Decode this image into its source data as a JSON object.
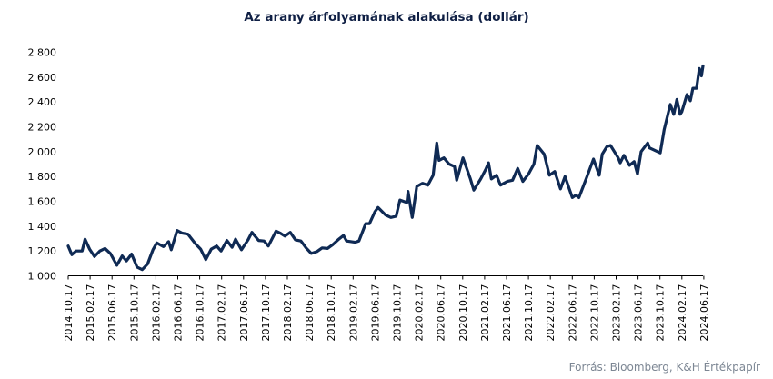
{
  "chart_data": {
    "type": "line",
    "title": "Az arany árfolyamának alakulása (dollár)",
    "xlabel": "",
    "ylabel": "",
    "ylim": [
      1000,
      2800
    ],
    "yticks": [
      1000,
      1200,
      1400,
      1600,
      1800,
      2000,
      2200,
      2400,
      2600,
      2800
    ],
    "ytick_labels": [
      "1 000",
      "1 200",
      "1 400",
      "1 600",
      "1 800",
      "2 000",
      "2 200",
      "2 400",
      "2 600",
      "2 800"
    ],
    "xlim": [
      "2014-10-17",
      "2024-10-17"
    ],
    "xtick_labels": [
      "2014.10.17",
      "2015.02.17",
      "2015.06.17",
      "2015.10.17",
      "2016.02.17",
      "2016.06.17",
      "2016.10.17",
      "2017.02.17",
      "2017.06.17",
      "2017.10.17",
      "2018.02.17",
      "2018.06.17",
      "2018.10.17",
      "2019.02.17",
      "2019.06.17",
      "2019.10.17",
      "2020.02.17",
      "2020.06.17",
      "2020.10.17",
      "2021.02.17",
      "2021.06.17",
      "2021.10.17",
      "2022.02.17",
      "2022.06.17",
      "2022.10.17",
      "2023.02.17",
      "2023.06.17",
      "2023.10.17",
      "2024.02.17",
      "2024.06.17"
    ],
    "grid": false,
    "legend": "none",
    "series": [
      {
        "color": "#0f2a54",
        "points": [
          [
            "2014-10-17",
            1240
          ],
          [
            "2014-11-07",
            1170
          ],
          [
            "2014-12-01",
            1200
          ],
          [
            "2015-01-05",
            1200
          ],
          [
            "2015-01-22",
            1295
          ],
          [
            "2015-02-17",
            1215
          ],
          [
            "2015-03-17",
            1155
          ],
          [
            "2015-04-17",
            1200
          ],
          [
            "2015-05-17",
            1220
          ],
          [
            "2015-06-17",
            1180
          ],
          [
            "2015-07-24",
            1085
          ],
          [
            "2015-08-24",
            1160
          ],
          [
            "2015-09-17",
            1120
          ],
          [
            "2015-10-17",
            1175
          ],
          [
            "2015-11-17",
            1070
          ],
          [
            "2015-12-17",
            1050
          ],
          [
            "2016-01-17",
            1095
          ],
          [
            "2016-02-17",
            1210
          ],
          [
            "2016-03-10",
            1265
          ],
          [
            "2016-04-17",
            1235
          ],
          [
            "2016-05-17",
            1275
          ],
          [
            "2016-06-01",
            1210
          ],
          [
            "2016-07-05",
            1365
          ],
          [
            "2016-08-01",
            1345
          ],
          [
            "2016-09-05",
            1335
          ],
          [
            "2016-10-17",
            1260
          ],
          [
            "2016-11-17",
            1215
          ],
          [
            "2016-12-17",
            1130
          ],
          [
            "2017-01-17",
            1215
          ],
          [
            "2017-02-17",
            1240
          ],
          [
            "2017-03-15",
            1200
          ],
          [
            "2017-04-17",
            1285
          ],
          [
            "2017-05-17",
            1230
          ],
          [
            "2017-06-06",
            1295
          ],
          [
            "2017-07-10",
            1210
          ],
          [
            "2017-08-17",
            1290
          ],
          [
            "2017-09-08",
            1350
          ],
          [
            "2017-10-17",
            1285
          ],
          [
            "2017-11-17",
            1280
          ],
          [
            "2017-12-12",
            1240
          ],
          [
            "2018-01-25",
            1360
          ],
          [
            "2018-02-17",
            1345
          ],
          [
            "2018-03-17",
            1320
          ],
          [
            "2018-04-17",
            1350
          ],
          [
            "2018-05-17",
            1290
          ],
          [
            "2018-06-17",
            1280
          ],
          [
            "2018-07-17",
            1225
          ],
          [
            "2018-08-16",
            1180
          ],
          [
            "2018-09-17",
            1195
          ],
          [
            "2018-10-17",
            1225
          ],
          [
            "2018-11-17",
            1220
          ],
          [
            "2018-12-17",
            1250
          ],
          [
            "2019-01-17",
            1290
          ],
          [
            "2019-02-17",
            1325
          ],
          [
            "2019-03-07",
            1280
          ],
          [
            "2019-04-25",
            1270
          ],
          [
            "2019-05-17",
            1280
          ],
          [
            "2019-06-25",
            1420
          ],
          [
            "2019-07-17",
            1420
          ],
          [
            "2019-08-17",
            1515
          ],
          [
            "2019-09-04",
            1550
          ],
          [
            "2019-10-17",
            1490
          ],
          [
            "2019-11-17",
            1470
          ],
          [
            "2019-12-17",
            1480
          ],
          [
            "2020-01-08",
            1610
          ],
          [
            "2020-02-17",
            1590
          ],
          [
            "2020-02-24",
            1680
          ],
          [
            "2020-03-19",
            1470
          ],
          [
            "2020-04-14",
            1720
          ],
          [
            "2020-05-17",
            1745
          ],
          [
            "2020-06-17",
            1730
          ],
          [
            "2020-07-17",
            1810
          ],
          [
            "2020-08-07",
            2070
          ],
          [
            "2020-08-20",
            1930
          ],
          [
            "2020-09-17",
            1950
          ],
          [
            "2020-10-17",
            1900
          ],
          [
            "2020-11-17",
            1880
          ],
          [
            "2020-11-30",
            1770
          ],
          [
            "2021-01-05",
            1950
          ],
          [
            "2021-02-17",
            1780
          ],
          [
            "2021-03-08",
            1690
          ],
          [
            "2021-04-17",
            1780
          ],
          [
            "2021-05-17",
            1860
          ],
          [
            "2021-06-01",
            1910
          ],
          [
            "2021-06-17",
            1780
          ],
          [
            "2021-07-17",
            1810
          ],
          [
            "2021-08-09",
            1730
          ],
          [
            "2021-09-17",
            1760
          ],
          [
            "2021-10-17",
            1770
          ],
          [
            "2021-11-16",
            1865
          ],
          [
            "2021-12-15",
            1760
          ],
          [
            "2022-01-17",
            1820
          ],
          [
            "2022-02-17",
            1900
          ],
          [
            "2022-03-08",
            2050
          ],
          [
            "2022-04-17",
            1980
          ],
          [
            "2022-05-17",
            1810
          ],
          [
            "2022-06-17",
            1840
          ],
          [
            "2022-07-20",
            1700
          ],
          [
            "2022-08-15",
            1800
          ],
          [
            "2022-09-26",
            1630
          ],
          [
            "2022-10-17",
            1650
          ],
          [
            "2022-11-03",
            1630
          ],
          [
            "2022-12-17",
            1790
          ],
          [
            "2023-01-26",
            1940
          ],
          [
            "2023-02-28",
            1810
          ],
          [
            "2023-03-17",
            1980
          ],
          [
            "2023-04-13",
            2040
          ],
          [
            "2023-05-04",
            2050
          ],
          [
            "2023-06-17",
            1950
          ],
          [
            "2023-06-29",
            1910
          ],
          [
            "2023-07-20",
            1970
          ],
          [
            "2023-08-21",
            1890
          ],
          [
            "2023-09-17",
            1920
          ],
          [
            "2023-10-06",
            1820
          ],
          [
            "2023-10-27",
            2000
          ],
          [
            "2023-12-04",
            2070
          ],
          [
            "2023-12-14",
            2030
          ],
          [
            "2024-02-14",
            1990
          ],
          [
            "2024-03-08",
            2180
          ],
          [
            "2024-04-12",
            2380
          ],
          [
            "2024-05-02",
            2300
          ],
          [
            "2024-05-20",
            2420
          ],
          [
            "2024-06-07",
            2300
          ],
          [
            "2024-06-17",
            2320
          ],
          [
            "2024-07-17",
            2460
          ],
          [
            "2024-08-05",
            2410
          ],
          [
            "2024-08-20",
            2510
          ],
          [
            "2024-09-10",
            2510
          ],
          [
            "2024-09-26",
            2670
          ],
          [
            "2024-10-08",
            2610
          ],
          [
            "2024-10-17",
            2690
          ]
        ]
      }
    ]
  },
  "source_note": "Forrás: Bloomberg,  K&H Értékpapír"
}
